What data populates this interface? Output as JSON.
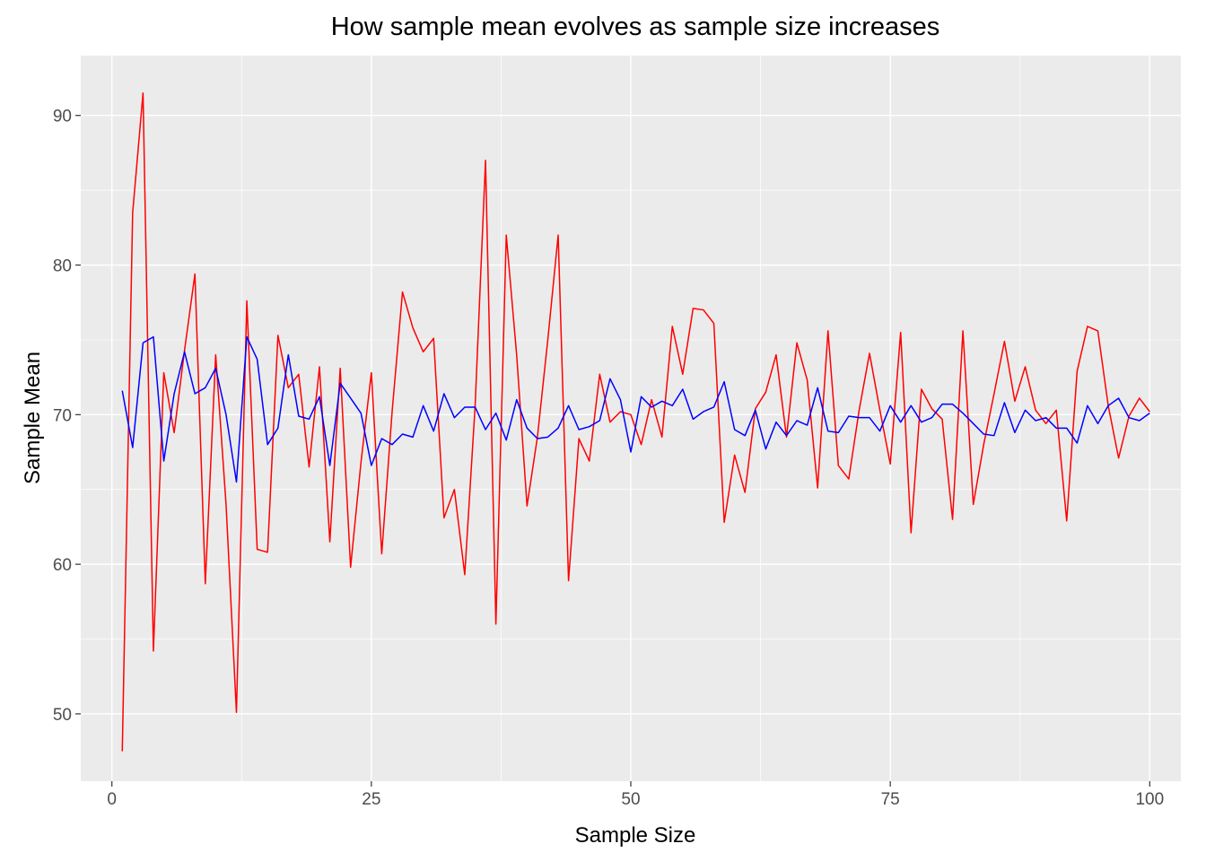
{
  "chart_data": {
    "type": "line",
    "title": "How sample mean evolves as sample size increases",
    "xlabel": "Sample Size",
    "ylabel": "Sample Mean",
    "xlim": [
      -3,
      103
    ],
    "ylim": [
      45.5,
      94
    ],
    "x_ticks": [
      0,
      25,
      50,
      75,
      100
    ],
    "y_ticks": [
      50,
      60,
      70,
      80,
      90
    ],
    "x_tick_labels": [
      "0",
      "25",
      "50",
      "75",
      "100"
    ],
    "y_tick_labels": [
      "50",
      "60",
      "70",
      "80",
      "90"
    ],
    "grid": true,
    "panel_background": "#ebebeb",
    "series": [
      {
        "color": "#ff0000",
        "x": [
          1,
          2,
          3,
          4,
          5,
          6,
          7,
          8,
          9,
          10,
          11,
          12,
          13,
          14,
          15,
          16,
          17,
          18,
          19,
          20,
          21,
          22,
          23,
          24,
          25,
          26,
          27,
          28,
          29,
          30,
          31,
          32,
          33,
          34,
          35,
          36,
          37,
          38,
          39,
          40,
          41,
          42,
          43,
          44,
          45,
          46,
          47,
          48,
          49,
          50,
          51,
          52,
          53,
          54,
          55,
          56,
          57,
          58,
          59,
          60,
          61,
          62,
          63,
          64,
          65,
          66,
          67,
          68,
          69,
          70,
          71,
          72,
          73,
          74,
          75,
          76,
          77,
          78,
          79,
          80,
          81,
          82,
          83,
          84,
          85,
          86,
          87,
          88,
          89,
          90,
          91,
          92,
          93,
          94,
          95,
          96,
          97,
          98,
          99,
          100
        ],
        "values": [
          47.5,
          83.5,
          91.5,
          54.2,
          72.8,
          68.8,
          74.3,
          79.4,
          58.7,
          74.0,
          64.0,
          50.1,
          77.6,
          61.0,
          60.8,
          75.3,
          71.8,
          72.7,
          66.5,
          73.2,
          61.5,
          73.1,
          59.8,
          66.8,
          72.8,
          60.7,
          70.2,
          78.2,
          75.8,
          74.2,
          75.1,
          63.1,
          65.0,
          59.3,
          70.6,
          87.0,
          56.0,
          82.0,
          74.0,
          63.9,
          68.5,
          75.0,
          82.0,
          58.9,
          68.4,
          66.9,
          72.7,
          69.5,
          70.2,
          70.0,
          68.0,
          71.0,
          68.5,
          75.9,
          72.7,
          77.1,
          77.0,
          76.1,
          62.8,
          67.3,
          64.8,
          70.4,
          71.5,
          74.0,
          68.5,
          74.8,
          72.3,
          65.1,
          75.6,
          66.6,
          65.7,
          70.3,
          74.1,
          70.3,
          66.7,
          75.5,
          62.1,
          71.7,
          70.4,
          69.7,
          63.0,
          75.6,
          64.0,
          68.0,
          71.4,
          74.9,
          70.9,
          73.2,
          70.3,
          69.4,
          70.3,
          62.9,
          72.9,
          75.9,
          75.6,
          70.6,
          67.1,
          69.9,
          71.1,
          70.2
        ]
      },
      {
        "color": "#0000ff",
        "x": [
          1,
          2,
          3,
          4,
          5,
          6,
          7,
          8,
          9,
          10,
          11,
          12,
          13,
          14,
          15,
          16,
          17,
          18,
          19,
          20,
          21,
          22,
          23,
          24,
          25,
          26,
          27,
          28,
          29,
          30,
          31,
          32,
          33,
          34,
          35,
          36,
          37,
          38,
          39,
          40,
          41,
          42,
          43,
          44,
          45,
          46,
          47,
          48,
          49,
          50,
          51,
          52,
          53,
          54,
          55,
          56,
          57,
          58,
          59,
          60,
          61,
          62,
          63,
          64,
          65,
          66,
          67,
          68,
          69,
          70,
          71,
          72,
          73,
          74,
          75,
          76,
          77,
          78,
          79,
          80,
          81,
          82,
          83,
          84,
          85,
          86,
          87,
          88,
          89,
          90,
          91,
          92,
          93,
          94,
          95,
          96,
          97,
          98,
          99,
          100
        ],
        "values": [
          71.6,
          67.8,
          74.8,
          75.2,
          66.9,
          71.4,
          74.2,
          71.4,
          71.8,
          73.1,
          70.0,
          65.5,
          75.2,
          73.7,
          68.0,
          69.1,
          74.0,
          69.9,
          69.7,
          71.2,
          66.6,
          72.1,
          71.1,
          70.1,
          66.6,
          68.4,
          68.0,
          68.7,
          68.5,
          70.6,
          68.9,
          71.4,
          69.8,
          70.5,
          70.5,
          69.0,
          70.1,
          68.3,
          71.0,
          69.1,
          68.4,
          68.5,
          69.1,
          70.6,
          69.0,
          69.2,
          69.6,
          72.4,
          71.0,
          67.5,
          71.2,
          70.5,
          70.9,
          70.6,
          71.7,
          69.7,
          70.2,
          70.5,
          72.2,
          69.0,
          68.6,
          70.3,
          67.7,
          69.5,
          68.6,
          69.6,
          69.3,
          71.8,
          68.9,
          68.8,
          69.9,
          69.8,
          69.8,
          68.9,
          70.6,
          69.5,
          70.6,
          69.5,
          69.8,
          70.7,
          70.7,
          70.1,
          69.4,
          68.7,
          68.6,
          70.8,
          68.8,
          70.3,
          69.6,
          69.8,
          69.1,
          69.1,
          68.1,
          70.6,
          69.4,
          70.6,
          71.1,
          69.8,
          69.6,
          70.1
        ]
      }
    ]
  }
}
